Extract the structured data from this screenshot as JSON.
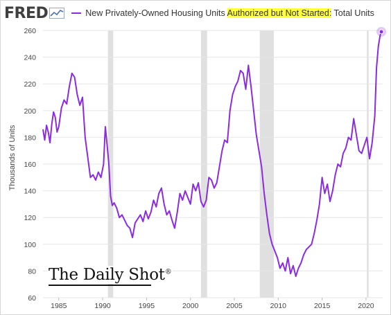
{
  "header": {
    "logo": "FRED",
    "logo_icon": "line-chart-icon",
    "series_title_before": "New Privately-Owned Housing Units ",
    "series_title_highlight": "Authorized but Not Started:",
    "series_title_after": " Total Units"
  },
  "watermark": {
    "text": "The Daily Shot",
    "reg": "®"
  },
  "colors": {
    "series": "#8a2be2",
    "recession": "#e0e0e0",
    "grid": "#e6e6e6",
    "highlight": "#ffff3c"
  },
  "chart_data": {
    "type": "line",
    "title": "New Privately-Owned Housing Units Authorized but Not Started: Total Units",
    "ylabel": "Thousands of Units",
    "xlabel": "",
    "xlim": [
      1983.2,
      2021.9
    ],
    "ylim": [
      60,
      260
    ],
    "yticks": [
      60,
      80,
      100,
      120,
      140,
      160,
      180,
      200,
      220,
      240,
      260
    ],
    "xticks": [
      1985,
      1990,
      1995,
      2000,
      2005,
      2010,
      2015,
      2020
    ],
    "grid": true,
    "recessions": [
      [
        1990.6,
        1991.2
      ],
      [
        2001.2,
        2001.9
      ],
      [
        2007.9,
        2009.5
      ],
      [
        2020.1,
        2020.3
      ]
    ],
    "series": [
      {
        "name": "New Privately-Owned Housing Units Authorized but Not Started: Total Units",
        "x": [
          1983.2,
          1983.4,
          1983.6,
          1983.8,
          1984.0,
          1984.2,
          1984.4,
          1984.6,
          1984.8,
          1985.0,
          1985.3,
          1985.6,
          1985.9,
          1986.2,
          1986.5,
          1986.8,
          1987.1,
          1987.4,
          1987.7,
          1988.0,
          1988.3,
          1988.6,
          1988.9,
          1989.2,
          1989.5,
          1989.8,
          1990.1,
          1990.3,
          1990.5,
          1990.7,
          1990.9,
          1991.1,
          1991.3,
          1991.6,
          1991.9,
          1992.2,
          1992.5,
          1992.8,
          1993.1,
          1993.4,
          1993.7,
          1994.0,
          1994.3,
          1994.6,
          1994.9,
          1995.2,
          1995.5,
          1995.8,
          1996.1,
          1996.4,
          1996.7,
          1997.0,
          1997.3,
          1997.6,
          1997.9,
          1998.2,
          1998.5,
          1998.8,
          1999.1,
          1999.4,
          1999.7,
          2000.0,
          2000.3,
          2000.6,
          2000.9,
          2001.2,
          2001.5,
          2001.8,
          2002.1,
          2002.4,
          2002.7,
          2003.0,
          2003.3,
          2003.6,
          2003.9,
          2004.2,
          2004.5,
          2004.8,
          2005.1,
          2005.4,
          2005.7,
          2006.0,
          2006.3,
          2006.6,
          2006.9,
          2007.2,
          2007.5,
          2007.8,
          2008.1,
          2008.4,
          2008.7,
          2009.0,
          2009.3,
          2009.6,
          2009.9,
          2010.2,
          2010.5,
          2010.8,
          2011.1,
          2011.4,
          2011.7,
          2012.0,
          2012.3,
          2012.6,
          2012.9,
          2013.2,
          2013.5,
          2013.8,
          2014.1,
          2014.4,
          2014.7,
          2015.0,
          2015.3,
          2015.6,
          2015.9,
          2016.2,
          2016.5,
          2016.8,
          2017.1,
          2017.4,
          2017.7,
          2018.0,
          2018.3,
          2018.6,
          2018.9,
          2019.2,
          2019.5,
          2019.8,
          2020.1,
          2020.4,
          2020.7,
          2021.0,
          2021.2,
          2021.4,
          2021.6,
          2021.75
        ],
        "values": [
          186,
          178,
          189,
          184,
          176,
          190,
          199,
          195,
          184,
          188,
          202,
          208,
          205,
          218,
          228,
          225,
          212,
          204,
          210,
          180,
          165,
          150,
          152,
          148,
          154,
          150,
          160,
          188,
          175,
          160,
          136,
          129,
          131,
          127,
          120,
          122,
          118,
          114,
          112,
          105,
          116,
          119,
          122,
          117,
          125,
          119,
          124,
          133,
          128,
          138,
          142,
          130,
          122,
          125,
          118,
          112,
          124,
          138,
          133,
          140,
          135,
          130,
          145,
          140,
          146,
          132,
          128,
          133,
          150,
          148,
          142,
          146,
          158,
          170,
          178,
          176,
          200,
          212,
          218,
          222,
          230,
          228,
          216,
          234,
          218,
          200,
          182,
          170,
          158,
          138,
          122,
          108,
          100,
          95,
          90,
          82,
          86,
          80,
          90,
          78,
          84,
          76,
          82,
          86,
          92,
          96,
          98,
          100,
          108,
          118,
          130,
          150,
          138,
          145,
          132,
          140,
          152,
          160,
          158,
          168,
          172,
          180,
          178,
          194,
          182,
          170,
          168,
          174,
          180,
          164,
          176,
          196,
          232,
          248,
          256,
          259
        ]
      }
    ]
  }
}
